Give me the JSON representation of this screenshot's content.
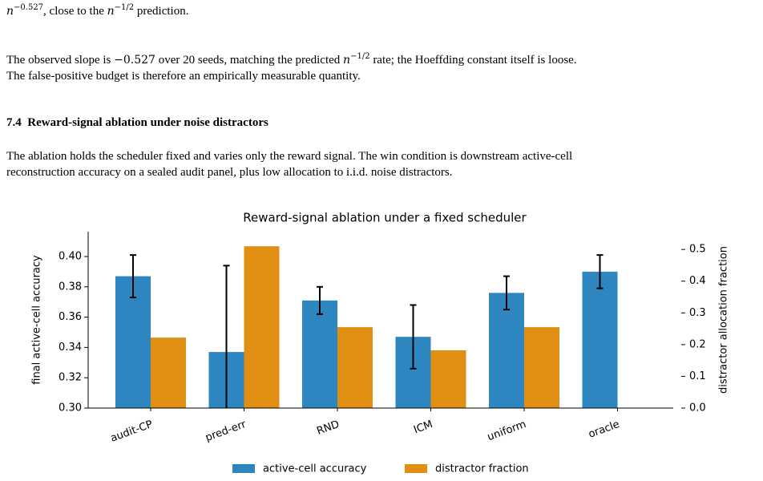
{
  "text": {
    "intro": [
      "n",
      "−0.527",
      ", close to the ",
      "n",
      "−1/2",
      " prediction."
    ],
    "para1": {
      "line1": [
        "The observed slope is ",
        "−0.527",
        " over 20 seeds, matching the predicted ",
        "n",
        "−1/2",
        " rate; the Hoeffding constant itself is loose."
      ],
      "line2": "The false-positive budget is therefore an empirically measurable quantity."
    },
    "section": {
      "number": "7.4",
      "title": "Reward-signal ablation under noise distractors"
    },
    "para2": [
      "The ablation holds the scheduler fixed and varies only the reward signal. The win condition is downstream active-cell",
      "reconstruction accuracy on a sealed audit panel, plus low allocation to i.i.d. noise distractors."
    ]
  },
  "chart_data": {
    "type": "bar",
    "title": "Reward-signal ablation under a fixed scheduler",
    "ylabel": "final active-cell accuracy",
    "y2label": "distractor allocation fraction",
    "categories": [
      "audit-CP",
      "pred-err",
      "RND",
      "ICM",
      "uniform",
      "oracle"
    ],
    "series": [
      {
        "name": "active-cell accuracy",
        "color": "#2e86c1",
        "values": [
          0.387,
          0.337,
          0.371,
          0.347,
          0.376,
          0.39
        ],
        "errors": [
          0.014,
          0.057,
          0.009,
          0.021,
          0.011,
          0.011
        ]
      },
      {
        "name": "distractor fraction",
        "color": "#e08f12",
        "axis": "y2",
        "values": [
          0.222,
          0.51,
          0.255,
          0.182,
          0.255,
          0
        ]
      }
    ],
    "ylim": [
      0.3,
      0.4164
    ],
    "yticks": [
      {
        "value": 0.3,
        "label": "0.30"
      },
      {
        "value": 0.32,
        "label": "0.32"
      },
      {
        "value": 0.34,
        "label": "0.34"
      },
      {
        "value": 0.36,
        "label": "0.36"
      },
      {
        "value": 0.38,
        "label": "0.38"
      },
      {
        "value": 0.4,
        "label": "0.40"
      }
    ],
    "y2lim": [
      0,
      0.556
    ],
    "y2ticks": [
      {
        "value": 0,
        "label": "0.0"
      },
      0.1,
      0.2,
      0.3,
      0.4,
      0.5
    ],
    "legend": "lower center",
    "grid": false
  }
}
